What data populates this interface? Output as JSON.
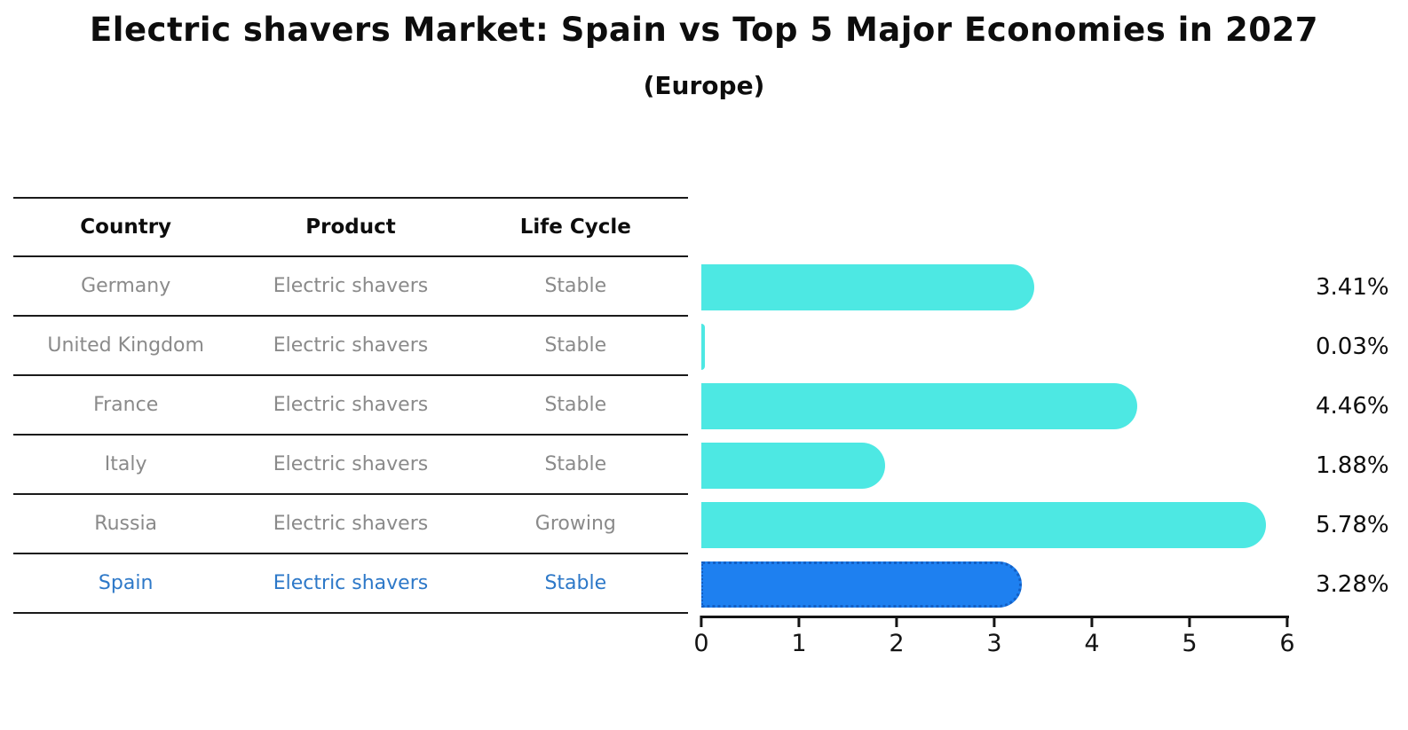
{
  "title": "Electric shavers Market: Spain vs Top 5 Major Economies in 2027",
  "subtitle": "(Europe)",
  "table": {
    "headers": [
      "Country",
      "Product",
      "Life Cycle"
    ],
    "rows": [
      {
        "country": "Germany",
        "product": "Electric shavers",
        "life_cycle": "Stable"
      },
      {
        "country": "United Kingdom",
        "product": "Electric shavers",
        "life_cycle": "Stable"
      },
      {
        "country": "France",
        "product": "Electric shavers",
        "life_cycle": "Stable"
      },
      {
        "country": "Italy",
        "product": "Electric shavers",
        "life_cycle": "Stable"
      },
      {
        "country": "Russia",
        "product": "Electric shavers",
        "life_cycle": "Growing"
      },
      {
        "country": "Spain",
        "product": "Electric shavers",
        "life_cycle": "Stable"
      }
    ],
    "highlighted_row": "Spain"
  },
  "chart_data": {
    "type": "bar",
    "orientation": "horizontal",
    "categories": [
      "Germany",
      "United Kingdom",
      "France",
      "Italy",
      "Russia",
      "Spain"
    ],
    "values": [
      3.41,
      0.03,
      4.46,
      1.88,
      5.78,
      3.28
    ],
    "value_labels": [
      "3.41%",
      "0.03%",
      "4.46%",
      "1.88%",
      "5.78%",
      "3.28%"
    ],
    "xlim": [
      0,
      6
    ],
    "x_tick_labels": [
      "0",
      "1",
      "2",
      "3",
      "4",
      "5",
      "6"
    ],
    "grid": false,
    "legend": false,
    "bar_color": "#4de8e3",
    "highlight_bar_color": "#1e80f0",
    "highlight_index": 5
  },
  "colors": {
    "title_text": "#0d0d0d",
    "row_text": "#8a8a8a",
    "highlight_text": "#2d78c8",
    "bar_cyan": "#4de8e3",
    "bar_blue": "#1e80f0",
    "axis": "#141414"
  }
}
